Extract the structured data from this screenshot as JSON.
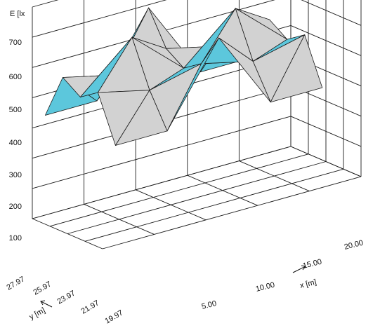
{
  "chart_data": {
    "type": "surface",
    "zlabel": "E [lx",
    "xlabel": "x [m]",
    "ylabel": "y [m]",
    "z_ticks": [
      "700",
      "600",
      "500",
      "400",
      "300",
      "200",
      "100"
    ],
    "x_ticks": [
      "5.00",
      "10.00",
      "15.00",
      "20.00"
    ],
    "y_ticks": [
      "27.97",
      "25.97",
      "23.97",
      "21.97",
      "19.97"
    ],
    "zlim": [
      0,
      700
    ],
    "grid": true,
    "colors": {
      "surface_light": "#d2d2d2",
      "surface_dark": "#5cc7dc",
      "edge": "#1a1a1a"
    },
    "x": [
      1.25,
      6.25,
      11.25,
      16.25,
      21.25
    ],
    "y": [
      19.97,
      21.97,
      23.97,
      25.97,
      27.97
    ],
    "z": [
      [
        330,
        330,
        590,
        330,
        330
      ],
      [
        480,
        440,
        480,
        440,
        480
      ],
      [
        440,
        590,
        440,
        590,
        440
      ],
      [
        480,
        440,
        480,
        440,
        480
      ],
      [
        330,
        330,
        590,
        330,
        330
      ]
    ]
  }
}
